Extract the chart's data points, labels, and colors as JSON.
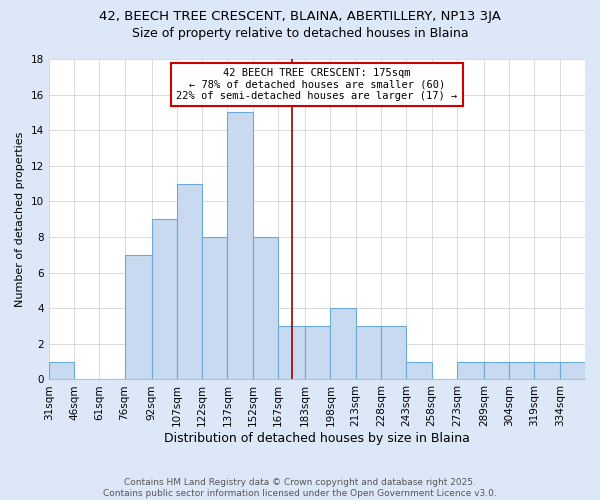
{
  "title": "42, BEECH TREE CRESCENT, BLAINA, ABERTILLERY, NP13 3JA",
  "subtitle": "Size of property relative to detached houses in Blaina",
  "xlabel": "Distribution of detached houses by size in Blaina",
  "ylabel": "Number of detached properties",
  "bin_edges": [
    31,
    46,
    61,
    76,
    92,
    107,
    122,
    137,
    152,
    167,
    183,
    198,
    213,
    228,
    243,
    258,
    273,
    289,
    304,
    319,
    334,
    349
  ],
  "bar_heights": [
    1,
    0,
    0,
    7,
    9,
    11,
    8,
    15,
    8,
    3,
    3,
    4,
    3,
    3,
    1,
    0,
    1,
    1,
    1,
    1,
    1
  ],
  "bar_color": "#c8d9f0",
  "bar_edgecolor": "#6aaad4",
  "reference_line_x": 175,
  "reference_line_color": "#990000",
  "annotation_text": "42 BEECH TREE CRESCENT: 175sqm\n← 78% of detached houses are smaller (60)\n22% of semi-detached houses are larger (17) →",
  "annotation_box_edgecolor": "#cc0000",
  "annotation_box_facecolor": "#ffffff",
  "ylim": [
    0,
    18
  ],
  "yticks": [
    0,
    2,
    4,
    6,
    8,
    10,
    12,
    14,
    16,
    18
  ],
  "plot_bg_color": "#ffffff",
  "fig_bg_color": "#dce8f8",
  "grid_color": "#cccccc",
  "footer_text": "Contains HM Land Registry data © Crown copyright and database right 2025.\nContains public sector information licensed under the Open Government Licence v3.0.",
  "title_fontsize": 9.5,
  "subtitle_fontsize": 9,
  "xlabel_fontsize": 9,
  "ylabel_fontsize": 8,
  "tick_labelsize": 7.5,
  "annotation_fontsize": 7.5,
  "footer_fontsize": 6.5
}
